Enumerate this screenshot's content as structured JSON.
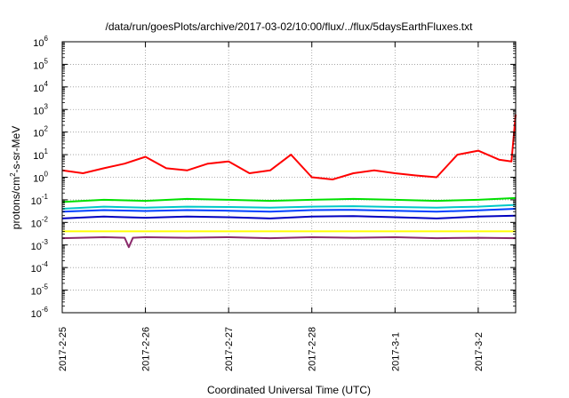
{
  "chart_data": {
    "type": "line",
    "title": "/data/run/goesPlots/archive/2017-03-02/10:00/flux/../flux/5daysEarthFluxes.txt",
    "xlabel": "Coordinated Universal Time (UTC)",
    "ylabel": {
      "prefix": "protons/cm",
      "sup": "2",
      "suffix": "-s-sr-MeV"
    },
    "x_ticks": [
      "2017-2-25",
      "2017-2-26",
      "2017-2-27",
      "2017-2-28",
      "2017-3-1",
      "2017-3-2"
    ],
    "x_tick_days": [
      0,
      1,
      2,
      3,
      4,
      5
    ],
    "xlim_days": [
      0,
      5.45
    ],
    "y_scale": "log",
    "ylim_exp": [
      -6,
      6
    ],
    "y_tick_labels": [
      {
        "base": "10",
        "exp": "-6"
      },
      {
        "base": "10",
        "exp": "-5"
      },
      {
        "base": "10",
        "exp": "-4"
      },
      {
        "base": "10",
        "exp": "-3"
      },
      {
        "base": "10",
        "exp": "-2"
      },
      {
        "base": "10",
        "exp": "-1"
      },
      {
        "base": "10",
        "exp": "0"
      },
      {
        "base": "10",
        "exp": "1"
      },
      {
        "base": "10",
        "exp": "2"
      },
      {
        "base": "10",
        "exp": "3"
      },
      {
        "base": "10",
        "exp": "4"
      },
      {
        "base": "10",
        "exp": "5"
      },
      {
        "base": "10",
        "exp": "6"
      }
    ],
    "grid": true,
    "series": [
      {
        "color": "#ff0000",
        "x": [
          0,
          0.25,
          0.5,
          0.75,
          1.0,
          1.25,
          1.5,
          1.75,
          2.0,
          2.25,
          2.5,
          2.75,
          3.0,
          3.25,
          3.5,
          3.75,
          4.0,
          4.25,
          4.5,
          4.75,
          5.0,
          5.25,
          5.4,
          5.45
        ],
        "y": [
          2.0,
          1.5,
          2.5,
          4.0,
          8.0,
          2.5,
          2.0,
          4.0,
          5.0,
          1.5,
          2.0,
          10.0,
          1.0,
          0.8,
          1.5,
          2.0,
          1.5,
          1.2,
          1.0,
          10.0,
          15.0,
          6.0,
          5.0,
          600.0
        ]
      },
      {
        "color": "#00e000",
        "x": [
          0,
          0.5,
          1.0,
          1.5,
          2.0,
          2.5,
          3.0,
          3.5,
          4.0,
          4.5,
          5.0,
          5.45
        ],
        "y": [
          0.08,
          0.1,
          0.09,
          0.11,
          0.1,
          0.09,
          0.1,
          0.11,
          0.1,
          0.09,
          0.1,
          0.12
        ]
      },
      {
        "color": "#00c8c8",
        "x": [
          0,
          0.5,
          1.0,
          1.5,
          2.0,
          2.5,
          3.0,
          3.5,
          4.0,
          4.5,
          5.0,
          5.45
        ],
        "y": [
          0.04,
          0.05,
          0.045,
          0.05,
          0.048,
          0.045,
          0.05,
          0.052,
          0.048,
          0.045,
          0.05,
          0.06
        ]
      },
      {
        "color": "#0040ff",
        "x": [
          0,
          0.5,
          1.0,
          1.5,
          2.0,
          2.5,
          3.0,
          3.5,
          4.0,
          4.5,
          5.0,
          5.45
        ],
        "y": [
          0.03,
          0.035,
          0.032,
          0.035,
          0.033,
          0.03,
          0.035,
          0.036,
          0.033,
          0.03,
          0.034,
          0.04
        ]
      },
      {
        "color": "#0000c0",
        "x": [
          0,
          0.5,
          1.0,
          1.5,
          2.0,
          2.5,
          3.0,
          3.5,
          4.0,
          4.5,
          5.0,
          5.45
        ],
        "y": [
          0.015,
          0.018,
          0.016,
          0.018,
          0.017,
          0.015,
          0.018,
          0.019,
          0.017,
          0.015,
          0.018,
          0.02
        ]
      },
      {
        "color": "#ffff00",
        "x": [
          0,
          0.5,
          1.0,
          1.5,
          2.0,
          2.5,
          3.0,
          3.5,
          4.0,
          4.5,
          5.0,
          5.45
        ],
        "y": [
          0.004,
          0.004,
          0.004,
          0.004,
          0.004,
          0.004,
          0.004,
          0.004,
          0.004,
          0.004,
          0.004,
          0.004
        ]
      },
      {
        "color": "#8b2a6b",
        "x": [
          0,
          0.5,
          0.75,
          0.8,
          0.85,
          1.0,
          1.5,
          2.0,
          2.5,
          3.0,
          3.5,
          4.0,
          4.5,
          5.0,
          5.45
        ],
        "y": [
          0.002,
          0.0022,
          0.0021,
          0.0008,
          0.0021,
          0.0022,
          0.0021,
          0.0022,
          0.002,
          0.0022,
          0.0021,
          0.0022,
          0.002,
          0.0021,
          0.002
        ]
      }
    ]
  }
}
